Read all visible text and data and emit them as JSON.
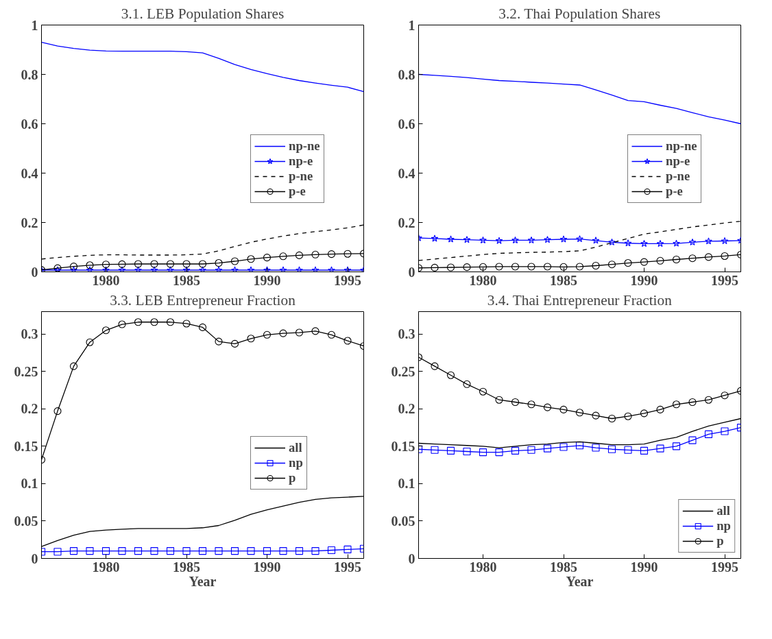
{
  "chart_data": [
    {
      "type": "line",
      "title": "3.1. LEB Population Shares",
      "x": [
        1976,
        1977,
        1978,
        1979,
        1980,
        1981,
        1982,
        1983,
        1984,
        1985,
        1986,
        1987,
        1988,
        1989,
        1990,
        1991,
        1992,
        1993,
        1994,
        1995,
        1996
      ],
      "xlim": [
        1976,
        1996
      ],
      "xticks": [
        1980,
        1985,
        1990,
        1995
      ],
      "ylim": [
        0,
        1
      ],
      "yticks": [
        0,
        0.2,
        0.4,
        0.6,
        0.8,
        1
      ],
      "grid": false,
      "legend": "right",
      "series": [
        {
          "name": "np-ne",
          "color": "#0000ff",
          "marker": "none",
          "line_style": "solid",
          "values": [
            0.93,
            0.915,
            0.905,
            0.898,
            0.895,
            0.894,
            0.894,
            0.894,
            0.894,
            0.892,
            0.887,
            0.865,
            0.84,
            0.82,
            0.803,
            0.788,
            0.775,
            0.765,
            0.756,
            0.748,
            0.73
          ]
        },
        {
          "name": "np-e",
          "color": "#0000ff",
          "marker": "star",
          "line_style": "solid",
          "values": [
            0.007,
            0.007,
            0.007,
            0.007,
            0.007,
            0.007,
            0.007,
            0.007,
            0.007,
            0.007,
            0.007,
            0.007,
            0.007,
            0.007,
            0.007,
            0.007,
            0.007,
            0.007,
            0.007,
            0.007,
            0.007
          ]
        },
        {
          "name": "p-ne",
          "color": "#000000",
          "marker": "none",
          "line_style": "dashed",
          "values": [
            0.052,
            0.058,
            0.063,
            0.067,
            0.069,
            0.069,
            0.068,
            0.068,
            0.068,
            0.069,
            0.072,
            0.085,
            0.103,
            0.12,
            0.133,
            0.145,
            0.155,
            0.163,
            0.17,
            0.178,
            0.19
          ]
        },
        {
          "name": "p-e",
          "color": "#000000",
          "marker": "circle",
          "line_style": "solid",
          "values": [
            0.008,
            0.015,
            0.022,
            0.027,
            0.03,
            0.031,
            0.032,
            0.032,
            0.032,
            0.032,
            0.032,
            0.036,
            0.043,
            0.052,
            0.058,
            0.063,
            0.067,
            0.07,
            0.072,
            0.073,
            0.074
          ]
        }
      ]
    },
    {
      "type": "line",
      "title": "3.2. Thai Population Shares",
      "x": [
        1976,
        1977,
        1978,
        1979,
        1980,
        1981,
        1982,
        1983,
        1984,
        1985,
        1986,
        1987,
        1988,
        1989,
        1990,
        1991,
        1992,
        1993,
        1994,
        1995,
        1996
      ],
      "xlim": [
        1976,
        1996
      ],
      "xticks": [
        1980,
        1985,
        1990,
        1995
      ],
      "ylim": [
        0,
        1
      ],
      "yticks": [
        0,
        0.2,
        0.4,
        0.6,
        0.8,
        1
      ],
      "grid": false,
      "legend": "right",
      "series": [
        {
          "name": "np-ne",
          "color": "#0000ff",
          "marker": "none",
          "line_style": "solid",
          "values": [
            0.8,
            0.796,
            0.792,
            0.787,
            0.781,
            0.775,
            0.772,
            0.768,
            0.765,
            0.761,
            0.757,
            0.737,
            0.716,
            0.694,
            0.689,
            0.675,
            0.662,
            0.645,
            0.628,
            0.615,
            0.6
          ]
        },
        {
          "name": "np-e",
          "color": "#0000ff",
          "marker": "star",
          "line_style": "solid",
          "values": [
            0.137,
            0.135,
            0.132,
            0.13,
            0.128,
            0.126,
            0.128,
            0.128,
            0.13,
            0.132,
            0.133,
            0.127,
            0.12,
            0.116,
            0.114,
            0.114,
            0.115,
            0.12,
            0.124,
            0.125,
            0.127
          ]
        },
        {
          "name": "p-ne",
          "color": "#000000",
          "marker": "none",
          "line_style": "dashed",
          "values": [
            0.046,
            0.052,
            0.058,
            0.064,
            0.07,
            0.075,
            0.077,
            0.079,
            0.08,
            0.082,
            0.085,
            0.1,
            0.118,
            0.135,
            0.153,
            0.162,
            0.172,
            0.182,
            0.19,
            0.198,
            0.205
          ]
        },
        {
          "name": "p-e",
          "color": "#000000",
          "marker": "circle",
          "line_style": "solid",
          "values": [
            0.016,
            0.017,
            0.018,
            0.019,
            0.02,
            0.021,
            0.021,
            0.021,
            0.021,
            0.02,
            0.021,
            0.025,
            0.03,
            0.036,
            0.04,
            0.045,
            0.05,
            0.055,
            0.06,
            0.064,
            0.07
          ]
        }
      ]
    },
    {
      "type": "line",
      "title": "3.3. LEB Entrepreneur Fraction",
      "xlabel": "Year",
      "x": [
        1976,
        1977,
        1978,
        1979,
        1980,
        1981,
        1982,
        1983,
        1984,
        1985,
        1986,
        1987,
        1988,
        1989,
        1990,
        1991,
        1992,
        1993,
        1994,
        1995,
        1996
      ],
      "xlim": [
        1976,
        1996
      ],
      "xticks": [
        1980,
        1985,
        1990,
        1995
      ],
      "ylim": [
        0,
        0.33
      ],
      "yticks": [
        0,
        0.05,
        0.1,
        0.15,
        0.2,
        0.25,
        0.3
      ],
      "grid": false,
      "legend": "right",
      "series": [
        {
          "name": "all",
          "color": "#000000",
          "marker": "none",
          "line_style": "solid",
          "values": [
            0.016,
            0.024,
            0.031,
            0.036,
            0.038,
            0.039,
            0.04,
            0.04,
            0.04,
            0.04,
            0.041,
            0.044,
            0.051,
            0.059,
            0.065,
            0.07,
            0.075,
            0.079,
            0.081,
            0.082,
            0.083
          ]
        },
        {
          "name": "np",
          "color": "#0000ff",
          "marker": "square",
          "line_style": "solid",
          "values": [
            0.009,
            0.009,
            0.01,
            0.01,
            0.01,
            0.01,
            0.01,
            0.01,
            0.01,
            0.01,
            0.01,
            0.01,
            0.01,
            0.01,
            0.01,
            0.01,
            0.01,
            0.01,
            0.011,
            0.012,
            0.013
          ]
        },
        {
          "name": "p",
          "color": "#000000",
          "marker": "circle",
          "line_style": "solid",
          "values": [
            0.132,
            0.197,
            0.257,
            0.289,
            0.305,
            0.313,
            0.316,
            0.316,
            0.316,
            0.314,
            0.309,
            0.29,
            0.287,
            0.294,
            0.299,
            0.301,
            0.302,
            0.304,
            0.299,
            0.291,
            0.284
          ]
        }
      ]
    },
    {
      "type": "line",
      "title": "3.4. Thai Entrepreneur Fraction",
      "xlabel": "Year",
      "x": [
        1976,
        1977,
        1978,
        1979,
        1980,
        1981,
        1982,
        1983,
        1984,
        1985,
        1986,
        1987,
        1988,
        1989,
        1990,
        1991,
        1992,
        1993,
        1994,
        1995,
        1996
      ],
      "xlim": [
        1976,
        1996
      ],
      "xticks": [
        1980,
        1985,
        1990,
        1995
      ],
      "ylim": [
        0,
        0.33
      ],
      "yticks": [
        0,
        0.05,
        0.1,
        0.15,
        0.2,
        0.25,
        0.3
      ],
      "grid": false,
      "legend": "bottom right",
      "series": [
        {
          "name": "all",
          "color": "#000000",
          "marker": "none",
          "line_style": "solid",
          "values": [
            0.154,
            0.153,
            0.152,
            0.151,
            0.15,
            0.148,
            0.15,
            0.152,
            0.153,
            0.155,
            0.156,
            0.154,
            0.152,
            0.152,
            0.153,
            0.158,
            0.162,
            0.17,
            0.177,
            0.182,
            0.187
          ]
        },
        {
          "name": "np",
          "color": "#0000ff",
          "marker": "square",
          "line_style": "solid",
          "values": [
            0.146,
            0.145,
            0.144,
            0.143,
            0.142,
            0.142,
            0.144,
            0.145,
            0.147,
            0.149,
            0.151,
            0.148,
            0.146,
            0.145,
            0.144,
            0.147,
            0.15,
            0.158,
            0.166,
            0.17,
            0.175
          ]
        },
        {
          "name": "p",
          "color": "#000000",
          "marker": "circle",
          "line_style": "solid",
          "values": [
            0.269,
            0.257,
            0.245,
            0.233,
            0.223,
            0.212,
            0.209,
            0.206,
            0.202,
            0.199,
            0.195,
            0.191,
            0.187,
            0.19,
            0.194,
            0.199,
            0.206,
            0.209,
            0.212,
            0.218,
            0.224
          ]
        }
      ]
    }
  ]
}
